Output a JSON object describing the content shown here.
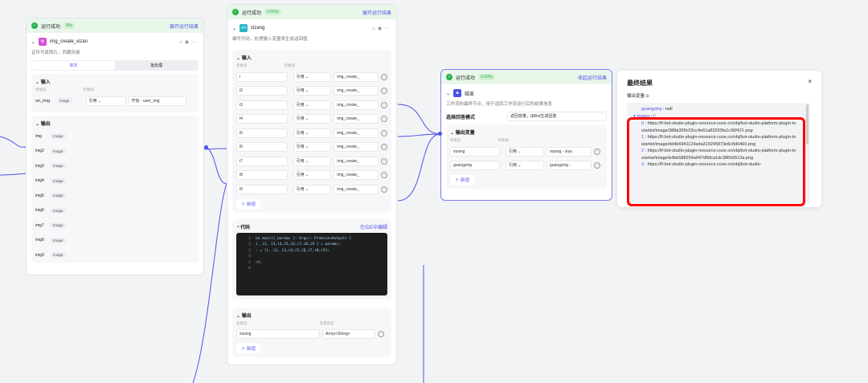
{
  "common": {
    "run_status": "运行成功",
    "ref": "引用",
    "add": "新增",
    "input": "输入",
    "output": "输出",
    "param_name": "参数名",
    "param_value": "参数值",
    "var_name": "变量名",
    "var_type": "变量类型"
  },
  "node1": {
    "time": "46s",
    "expand": "展开运行结果",
    "name": "img_create_xizan",
    "desc": "证件写真照片，西藏风格",
    "tabs": [
      "单次",
      "批处理"
    ],
    "input": {
      "name": "ori_img",
      "type": "Image",
      "source": "开始 - user_img"
    },
    "outputs": [
      {
        "name": "img",
        "type": "Image"
      },
      {
        "name": "img2",
        "type": "Image"
      },
      {
        "name": "img3",
        "type": "Image"
      },
      {
        "name": "img4",
        "type": "Image"
      },
      {
        "name": "img5",
        "type": "Image"
      },
      {
        "name": "img6",
        "type": "Image"
      },
      {
        "name": "img7",
        "type": "Image"
      },
      {
        "name": "img8",
        "type": "Image"
      },
      {
        "name": "img9",
        "type": "Image"
      }
    ]
  },
  "node2": {
    "time": "0.060s",
    "expand": "展开运行结果",
    "name": "xizang",
    "desc": "编写代码，处理输入变量来生成返回值",
    "inputs": [
      {
        "name": "i",
        "value": "img_create_"
      },
      {
        "name": "i2",
        "value": "img_create_"
      },
      {
        "name": "i3",
        "value": "img_create_"
      },
      {
        "name": "i4",
        "value": "img_create_"
      },
      {
        "name": "i5",
        "value": "img_create_"
      },
      {
        "name": "i6",
        "value": "img_create_"
      },
      {
        "name": "i7",
        "value": "img_create_"
      },
      {
        "name": "i8",
        "value": "img_create_"
      },
      {
        "name": "i9",
        "value": "img_create_"
      }
    ],
    "code_title": "代码",
    "edit_ide": "在IDE中编辑",
    "code": [
      "on main({ params }: Args): Promise<Output> {",
      "i, i2, i3,i4,i5,i6,i7,i8,i9 } = params;",
      ": = [i, i2, i3,i4,i5,i6,i7,i8,i9];",
      "",
      "rt;",
      ""
    ],
    "output": {
      "name": "xizang",
      "type": "Array<String>"
    }
  },
  "node3": {
    "time": "0.000s",
    "collapse": "收起运行结果",
    "name": "结束",
    "desc": "工作流的最终节点，用于返回工作流运行后的结果信息",
    "mode_label": "选择回答模式",
    "mode_value": "返回变量，由Bot生成回答",
    "out_title": "输出变量",
    "outputs": [
      {
        "name": "xizang",
        "value": "xizang - xiza"
      },
      {
        "name": "guangying",
        "value": "guangying -"
      }
    ]
  },
  "panel": {
    "title": "最终结果",
    "subtitle": "输出变量",
    "null_key": "guangying",
    "null_val": "null",
    "arr_key": "xizang",
    "arr_count": "(4)",
    "items": [
      {
        "i": "0",
        "url": "https://lf-bot-studio-plugin-resource.coze.cn/obj/bot-studio-platform-plugin-tos/artist/image/388a399c03cc4e61a83203fa1c36f421.png"
      },
      {
        "i": "1",
        "url": "https://lf-bot-studio-plugin-resource.coze.cn/obj/bot-studio-platform-plugin-tos/artist/image/dd4b6941124a4a319245873e6c8d0460.png"
      },
      {
        "i": "2",
        "url": "https://lf-bot-studio-plugin-resource.coze.cn/obj/bot-studio-platform-plugin-tos/artist/image/b4bb588254a947dfbfca1dc3860d512a.png"
      },
      {
        "i": "3",
        "url": "https://lf-bot-studio-plugin-resource.coze.cn/obj/bot-studio-"
      }
    ]
  },
  "colors": {
    "accent": "#4d53e8",
    "success": "#2bb24c",
    "highlight": "#ff0000"
  }
}
